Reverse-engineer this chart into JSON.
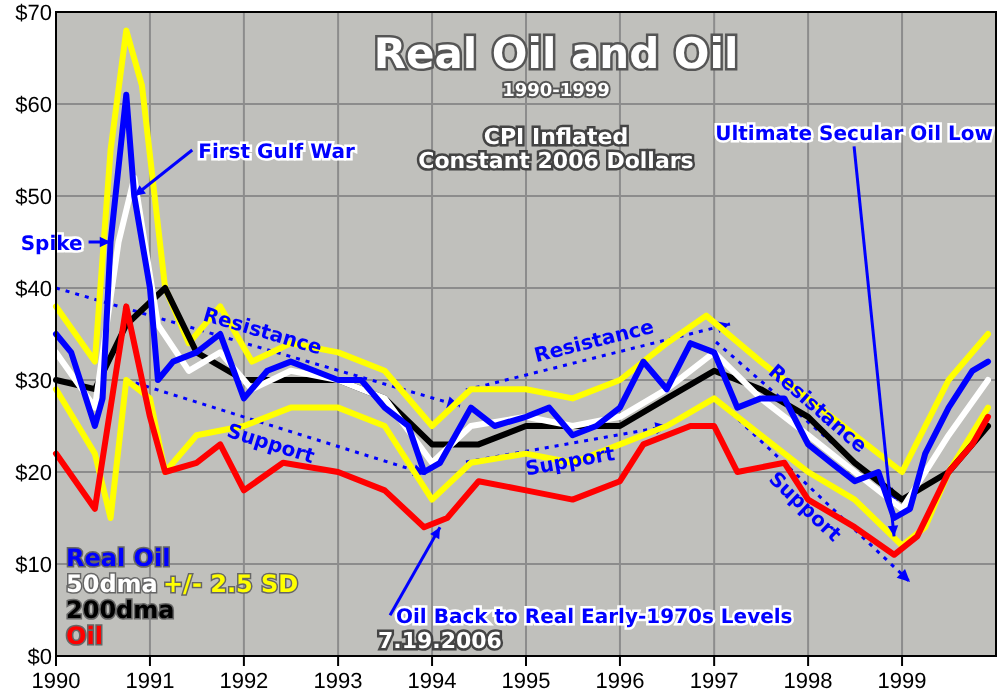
{
  "chart_data": {
    "type": "line",
    "title": "Real Oil and Oil",
    "subtitle": "1990-1999",
    "xlim": [
      "1990",
      "2000"
    ],
    "ylim": [
      0,
      70
    ],
    "xticks": [
      {
        "value": "1990",
        "label": "1990"
      },
      {
        "value": "1991",
        "label": "1991"
      },
      {
        "value": "1992",
        "label": "1992"
      },
      {
        "value": "1993",
        "label": "1993"
      },
      {
        "value": "1994",
        "label": "1994"
      },
      {
        "value": "1995",
        "label": "1995"
      },
      {
        "value": "1996",
        "label": "1996"
      },
      {
        "value": "1997",
        "label": "1997"
      },
      {
        "value": "1998",
        "label": "1998"
      },
      {
        "value": "1999",
        "label": "1999"
      }
    ],
    "yticks": [
      {
        "value": 0,
        "label": "$0"
      },
      {
        "value": 10,
        "label": "$10"
      },
      {
        "value": 20,
        "label": "$20"
      },
      {
        "value": 30,
        "label": "$30"
      },
      {
        "value": 40,
        "label": "$40"
      },
      {
        "value": 50,
        "label": "$50"
      },
      {
        "value": 60,
        "label": "$60"
      },
      {
        "value": 70,
        "label": "$70"
      }
    ],
    "grid": true,
    "legend": "bottom left",
    "marker": "none",
    "series": [
      {
        "name": "+/- 2.5 SD",
        "color": "#ffff00",
        "x": [
          "1990-01",
          "1990-06",
          "1990-08",
          "1990-10",
          "1990-12",
          "1991-03",
          "1991-06",
          "1991-10",
          "1992-02",
          "1992-07",
          "1993-01",
          "1993-07",
          "1994-01",
          "1994-06",
          "1995-01",
          "1995-07",
          "1996-01",
          "1996-07",
          "1996-12",
          "1997-07",
          "1998-01",
          "1998-07",
          "1999-01",
          "1999-07",
          "1999-12"
        ],
        "values": [
          38,
          32,
          55,
          68,
          62,
          40,
          34,
          38,
          32,
          34,
          33,
          31,
          25,
          29,
          29,
          28,
          30,
          34,
          37,
          32,
          28,
          24,
          20,
          30,
          35
        ]
      },
      {
        "color": "#ffff00",
        "x": [
          "1990-01",
          "1990-06",
          "1990-08",
          "1990-10",
          "1991-01",
          "1991-03",
          "1991-07",
          "1992-01",
          "1992-07",
          "1993-01",
          "1993-07",
          "1994-01",
          "1994-06",
          "1995-01",
          "1995-07",
          "1996-01",
          "1996-07",
          "1997-01",
          "1997-07",
          "1998-01",
          "1998-07",
          "1999-01",
          "1999-04",
          "1999-07",
          "1999-12"
        ],
        "values": [
          29,
          22,
          15,
          30,
          28,
          20,
          24,
          25,
          27,
          27,
          25,
          17,
          21,
          22,
          21,
          23,
          25,
          28,
          24,
          20,
          17,
          12,
          14,
          20,
          27
        ]
      },
      {
        "name": "200dma",
        "color": "#000000",
        "x": [
          "1990-01",
          "1990-06",
          "1990-10",
          "1991-03",
          "1991-07",
          "1992-01",
          "1992-07",
          "1993-01",
          "1993-07",
          "1994-01",
          "1994-07",
          "1995-01",
          "1995-07",
          "1996-01",
          "1996-07",
          "1997-01",
          "1997-07",
          "1998-01",
          "1998-07",
          "1999-01",
          "1999-07",
          "1999-12"
        ],
        "values": [
          30,
          29,
          36,
          40,
          33,
          30,
          30,
          30,
          28,
          23,
          23,
          25,
          25,
          25,
          28,
          31,
          29,
          26,
          21,
          17,
          20,
          25
        ]
      },
      {
        "name": "50dma",
        "color": "#ffffff",
        "x": [
          "1990-01",
          "1990-06",
          "1990-09",
          "1990-11",
          "1991-02",
          "1991-06",
          "1991-10",
          "1992-02",
          "1992-07",
          "1993-01",
          "1993-07",
          "1994-01",
          "1994-06",
          "1995-01",
          "1995-07",
          "1996-01",
          "1996-07",
          "1997-01",
          "1997-07",
          "1998-01",
          "1998-07",
          "1999-01",
          "1999-07",
          "1999-12"
        ],
        "values": [
          33,
          27,
          45,
          52,
          36,
          31,
          33,
          29,
          31,
          30,
          28,
          21,
          25,
          26,
          25,
          26,
          29,
          33,
          28,
          24,
          20,
          16,
          24,
          30
        ]
      },
      {
        "name": "Real Oil",
        "color": "#0000ff",
        "x": [
          "1990-01",
          "1990-03",
          "1990-06",
          "1990-07",
          "1990-08",
          "1990-10",
          "1990-11",
          "1991-01",
          "1991-02",
          "1991-04",
          "1991-07",
          "1991-10",
          "1992-01",
          "1992-04",
          "1992-07",
          "1992-10",
          "1993-01",
          "1993-04",
          "1993-07",
          "1993-10",
          "1993-12",
          "1994-02",
          "1994-06",
          "1994-09",
          "1995-01",
          "1995-04",
          "1995-07",
          "1995-10",
          "1996-01",
          "1996-04",
          "1996-07",
          "1996-10",
          "1997-01",
          "1997-04",
          "1997-07",
          "1997-10",
          "1998-01",
          "1998-04",
          "1998-07",
          "1998-10",
          "1998-12",
          "1999-02",
          "1999-04",
          "1999-07",
          "1999-10",
          "1999-12"
        ],
        "values": [
          35,
          33,
          25,
          28,
          45,
          61,
          50,
          40,
          30,
          32,
          33,
          35,
          28,
          31,
          32,
          31,
          30,
          30,
          27,
          25,
          20,
          21,
          27,
          25,
          26,
          27,
          24,
          25,
          27,
          32,
          29,
          34,
          33,
          27,
          28,
          28,
          23,
          21,
          19,
          20,
          15,
          16,
          22,
          27,
          31,
          32
        ]
      },
      {
        "name": "Oil",
        "color": "#ff0000",
        "x": [
          "1990-01",
          "1990-06",
          "1990-10",
          "1991-01",
          "1991-03",
          "1991-07",
          "1991-10",
          "1992-01",
          "1992-06",
          "1993-01",
          "1993-07",
          "1993-12",
          "1994-03",
          "1994-07",
          "1995-01",
          "1995-07",
          "1996-01",
          "1996-04",
          "1996-10",
          "1997-01",
          "1997-04",
          "1997-10",
          "1998-01",
          "1998-07",
          "1998-12",
          "1999-03",
          "1999-07",
          "1999-10",
          "1999-12"
        ],
        "values": [
          22,
          16,
          38,
          26,
          20,
          21,
          23,
          18,
          21,
          20,
          18,
          14,
          15,
          19,
          18,
          17,
          19,
          23,
          25,
          25,
          20,
          21,
          17,
          14,
          11,
          13,
          20,
          23,
          26
        ]
      }
    ],
    "annotations": [
      {
        "text": "First Gulf War",
        "x": "1990-11",
        "y": 50
      },
      {
        "text": "Spike",
        "x": "1990-08",
        "y": 45
      },
      {
        "text": "Ultimate Secular Oil Low",
        "x": "1998-12",
        "y": 13
      },
      {
        "text": "Oil Back to Real Early-1970s Levels",
        "x": "1994-02",
        "y": 14
      },
      "Resistance",
      "Support",
      "Resistance",
      "Support",
      "Resistance",
      "Support",
      "CPI Inflated",
      "Constant 2006 Dollars",
      "7.19.2006"
    ]
  }
}
